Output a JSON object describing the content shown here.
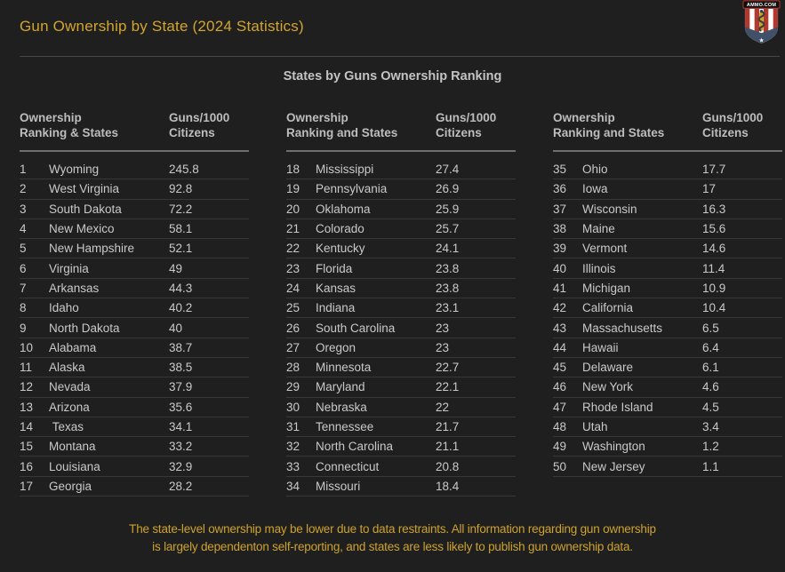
{
  "header": {
    "title": "Gun Ownership by State (2024 Statistics)",
    "logo": {
      "banner_text": "AMMO.COM"
    }
  },
  "section": {
    "subtitle": "States by Guns Ownership Ranking"
  },
  "table_groups": [
    {
      "col_rank_states": "Ownership\nRanking & States",
      "col_guns": "Guns/1000\nCitizens",
      "row_start": 0,
      "row_end": 17
    },
    {
      "col_rank_states": "Ownership\nRanking and States",
      "col_guns": "Guns/1000\nCitizens",
      "row_start": 17,
      "row_end": 34
    },
    {
      "col_rank_states": "Ownership\nRanking and States",
      "col_guns": "Guns/1000\nCitizens",
      "row_start": 34,
      "row_end": 50
    }
  ],
  "chart_data": {
    "type": "table",
    "title": "Gun Ownership by State (2024 Statistics)",
    "subtitle": "States by Guns Ownership Ranking",
    "columns": [
      "Ownership Ranking",
      "State",
      "Guns/1000 Citizens"
    ],
    "rows": [
      [
        1,
        "Wyoming",
        245.8
      ],
      [
        2,
        "West Virginia",
        92.8
      ],
      [
        3,
        "South Dakota",
        72.2
      ],
      [
        4,
        "New Mexico",
        58.1
      ],
      [
        5,
        "New Hampshire",
        52.1
      ],
      [
        6,
        "Virginia",
        49
      ],
      [
        7,
        "Arkansas",
        44.3
      ],
      [
        8,
        "Idaho",
        40.2
      ],
      [
        9,
        "North Dakota",
        40
      ],
      [
        10,
        "Alabama",
        38.7
      ],
      [
        11,
        "Alaska",
        38.5
      ],
      [
        12,
        "Nevada",
        37.9
      ],
      [
        13,
        "Arizona",
        35.6
      ],
      [
        14,
        " Texas",
        34.1
      ],
      [
        15,
        "Montana",
        33.2
      ],
      [
        16,
        "Louisiana",
        32.9
      ],
      [
        17,
        "Georgia",
        28.2
      ],
      [
        18,
        "Mississippi",
        27.4
      ],
      [
        19,
        "Pennsylvania",
        26.9
      ],
      [
        20,
        "Oklahoma",
        25.9
      ],
      [
        21,
        "Colorado",
        25.7
      ],
      [
        22,
        "Kentucky",
        24.1
      ],
      [
        23,
        "Florida",
        23.8
      ],
      [
        24,
        "Kansas",
        23.8
      ],
      [
        25,
        "Indiana",
        23.1
      ],
      [
        26,
        "South Carolina",
        23
      ],
      [
        27,
        "Oregon",
        23
      ],
      [
        28,
        "Minnesota",
        22.7
      ],
      [
        29,
        "Maryland",
        22.1
      ],
      [
        30,
        "Nebraska",
        22
      ],
      [
        31,
        "Tennessee",
        21.7
      ],
      [
        32,
        "North Carolina",
        21.1
      ],
      [
        33,
        "Connecticut",
        20.8
      ],
      [
        34,
        "Missouri",
        18.4
      ],
      [
        35,
        "Ohio",
        17.7
      ],
      [
        36,
        "Iowa",
        17
      ],
      [
        37,
        "Wisconsin",
        16.3
      ],
      [
        38,
        "Maine",
        15.6
      ],
      [
        39,
        "Vermont",
        14.6
      ],
      [
        40,
        "Illinois",
        11.4
      ],
      [
        41,
        "Michigan",
        10.9
      ],
      [
        42,
        "California",
        10.4
      ],
      [
        43,
        "Massachusetts",
        6.5
      ],
      [
        44,
        "Hawaii",
        6.4
      ],
      [
        45,
        "Delaware",
        6.1
      ],
      [
        46,
        "New York",
        4.6
      ],
      [
        47,
        "Rhode Island",
        4.5
      ],
      [
        48,
        "Utah",
        3.4
      ],
      [
        49,
        "Washington",
        1.2
      ],
      [
        50,
        "New Jersey",
        1.1
      ]
    ]
  },
  "footer": {
    "note": "The state-level ownership may be lower due to data restraints. All information regarding gun ownership\nis largely dependenton self-reporting, and states are less likely to publish gun ownership data."
  },
  "colors": {
    "background": "#1f1f1f",
    "accent_gold": "#d2a52e",
    "heading_gray": "#c3c3c3",
    "row_text": "#c9c9c9",
    "row_divider": "#383838",
    "header_underline": "#6f6f6f",
    "logo_red": "#b13a30",
    "logo_blue": "#3f5068",
    "logo_gold": "#c9a227"
  }
}
